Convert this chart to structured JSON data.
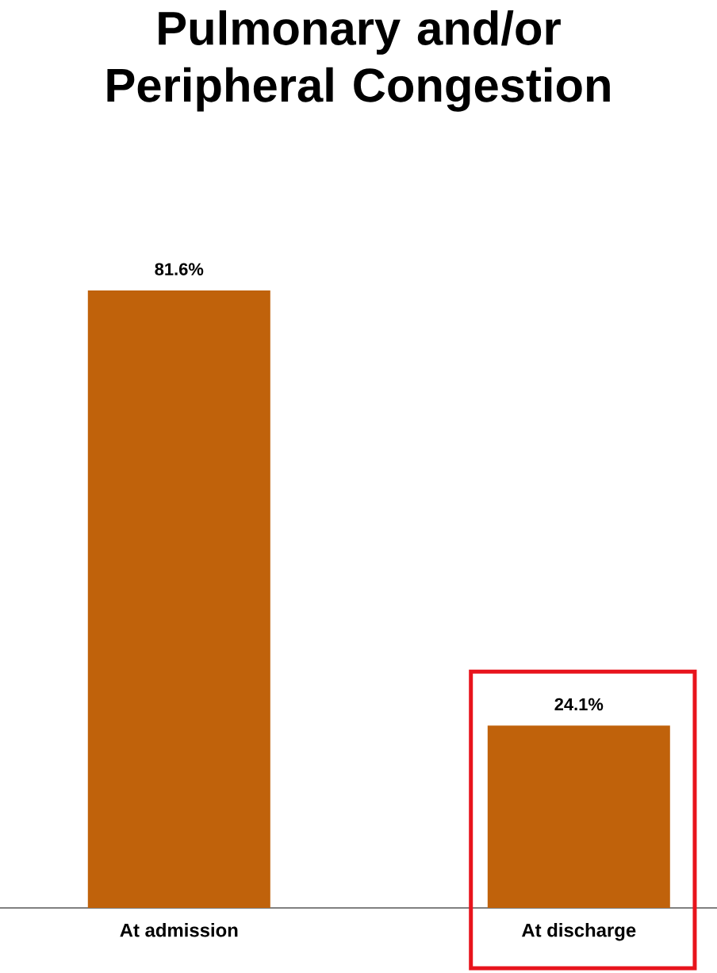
{
  "chart_data": {
    "type": "bar",
    "title": "Pulmonary and/or Peripheral Congestion",
    "categories": [
      "At admission",
      "At discharge"
    ],
    "values": [
      81.6,
      24.1
    ],
    "value_labels": [
      "81.6%",
      "24.1%"
    ],
    "color": "#c0620b",
    "tick_labels": "x"
  }
}
